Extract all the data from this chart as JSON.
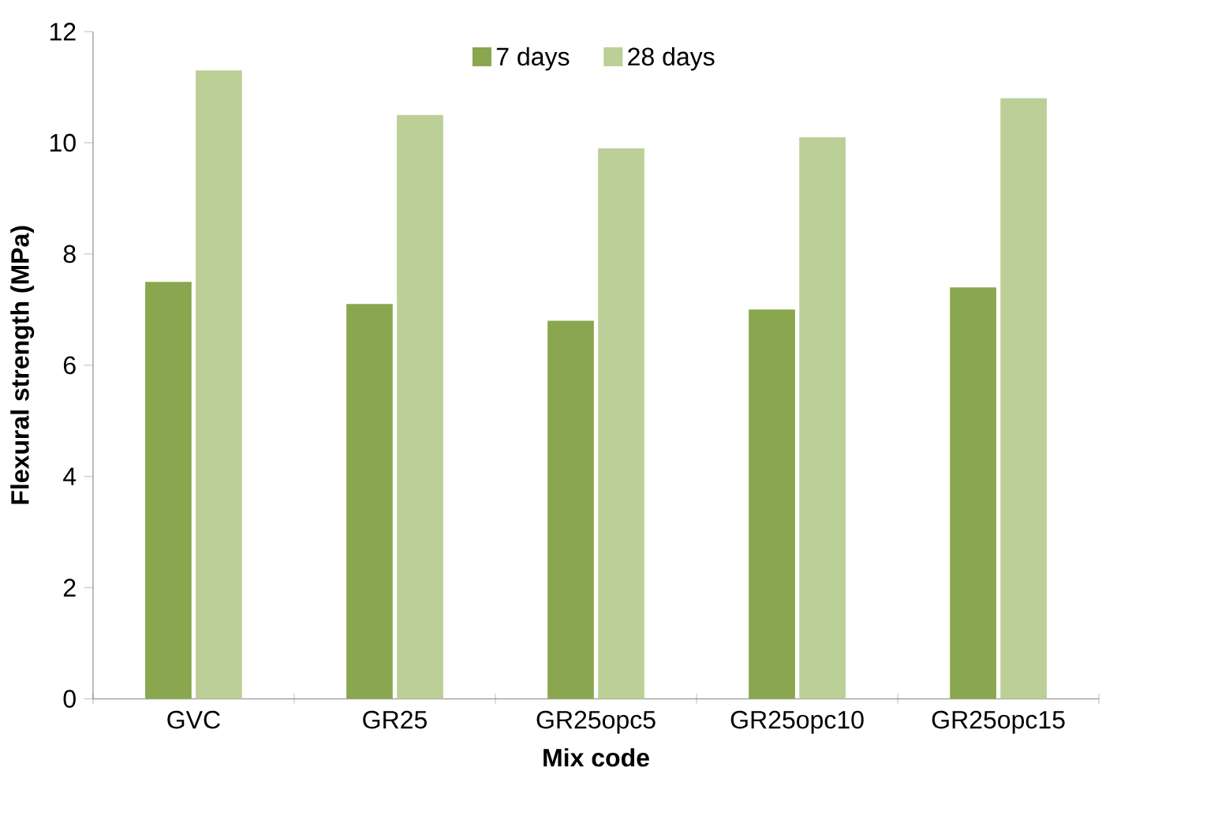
{
  "chart_data": {
    "type": "bar",
    "xlabel": "Mix code",
    "ylabel": "Flexural strength (MPa)",
    "categories": [
      "GVC",
      "GR25",
      "GR25opc5",
      "GR25opc10",
      "GR25opc15"
    ],
    "series": [
      {
        "name": "7 days",
        "color": "#8aa64e",
        "values": [
          7.5,
          7.1,
          6.8,
          7.0,
          7.4
        ]
      },
      {
        "name": "28 days",
        "color": "#bbcf97",
        "values": [
          11.3,
          10.5,
          9.9,
          10.1,
          10.8
        ]
      }
    ],
    "ylim": [
      0,
      12
    ],
    "yticks": [
      0,
      2,
      4,
      6,
      8,
      10,
      12
    ],
    "grid": false,
    "legend": "top"
  }
}
